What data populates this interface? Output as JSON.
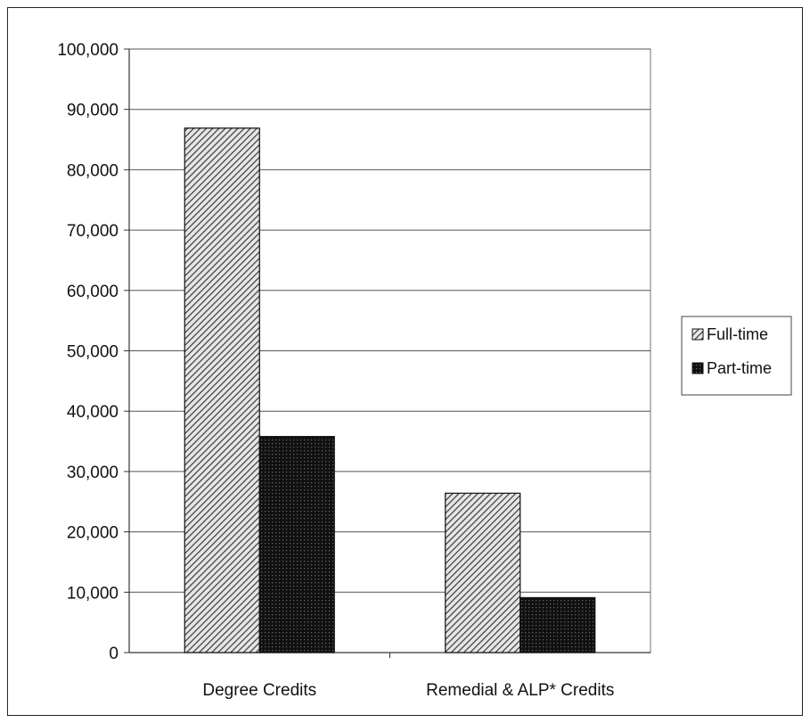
{
  "chart_data": {
    "type": "bar",
    "categories": [
      "Degree Credits",
      "Remedial & ALP* Credits"
    ],
    "series": [
      {
        "name": "Full-time",
        "values": [
          86900,
          26400
        ],
        "pattern": "diagonal-hatch",
        "color": "#555555"
      },
      {
        "name": "Part-time",
        "values": [
          35800,
          9100
        ],
        "pattern": "dense-dots",
        "color": "#1a1a1a"
      }
    ],
    "ylim": [
      0,
      100000
    ],
    "yticks": [
      {
        "value": 0,
        "label": "0"
      },
      {
        "value": 10000,
        "label": "10,000"
      },
      {
        "value": 20000,
        "label": "20,000"
      },
      {
        "value": 30000,
        "label": "30,000"
      },
      {
        "value": 40000,
        "label": "40,000"
      },
      {
        "value": 50000,
        "label": "50,000"
      },
      {
        "value": 60000,
        "label": "60,000"
      },
      {
        "value": 70000,
        "label": "70,000"
      },
      {
        "value": 80000,
        "label": "80,000"
      },
      {
        "value": 90000,
        "label": "90,000"
      },
      {
        "value": 100000,
        "label": "100,000"
      }
    ],
    "grid": true,
    "legend": "right",
    "title": "",
    "xlabel": "",
    "ylabel": ""
  }
}
